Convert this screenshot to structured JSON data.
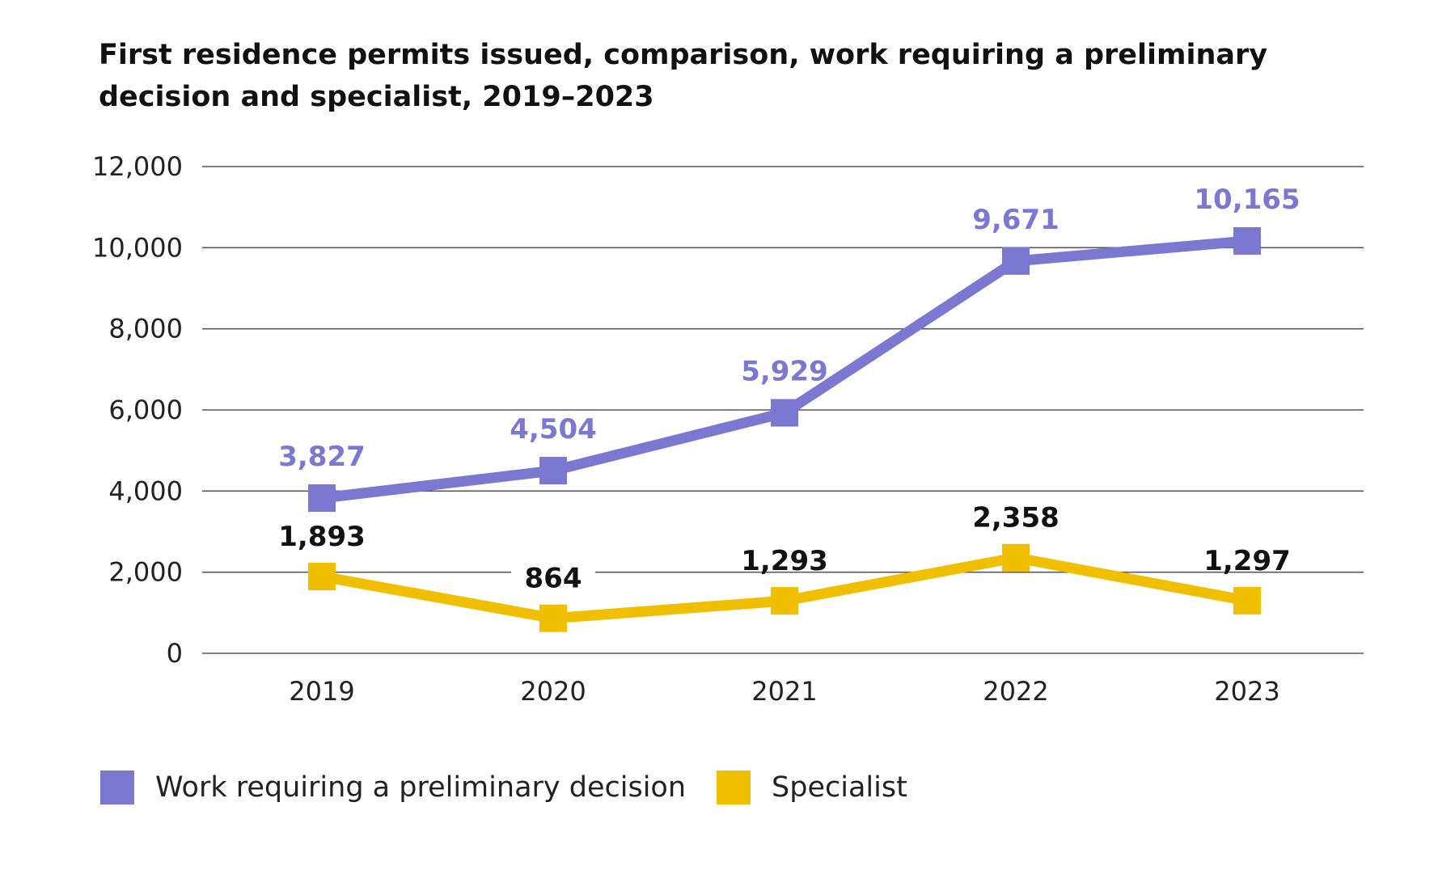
{
  "chart_data": {
    "type": "line",
    "title": "First residence permits issued, comparison, work requiring a preliminary decision and specialist, 2019–2023",
    "categories": [
      "2019",
      "2020",
      "2021",
      "2022",
      "2023"
    ],
    "series": [
      {
        "name": "Work requiring a preliminary decision",
        "values": [
          3827,
          4504,
          5929,
          9671,
          10165
        ],
        "labels": [
          "3,827",
          "4,504",
          "5,929",
          "9,671",
          "10,165"
        ],
        "color": "#7a78d1",
        "label_color": "#7a78d1",
        "marker": "square"
      },
      {
        "name": "Specialist",
        "values": [
          1893,
          864,
          1293,
          2358,
          1297
        ],
        "labels": [
          "1,893",
          "864",
          "1,293",
          "2,358",
          "1,297"
        ],
        "color": "#f0bf00",
        "label_color": "#111111",
        "marker": "square"
      }
    ],
    "ylim": [
      0,
      12000
    ],
    "yticks": [
      0,
      2000,
      4000,
      6000,
      8000,
      10000,
      12000
    ],
    "ytick_labels": [
      "0",
      "2,000",
      "4,000",
      "6,000",
      "8,000",
      "10,000",
      "12,000"
    ],
    "xlabel": "",
    "ylabel": "",
    "grid": "horizontal",
    "legend_position": "bottom-left"
  }
}
